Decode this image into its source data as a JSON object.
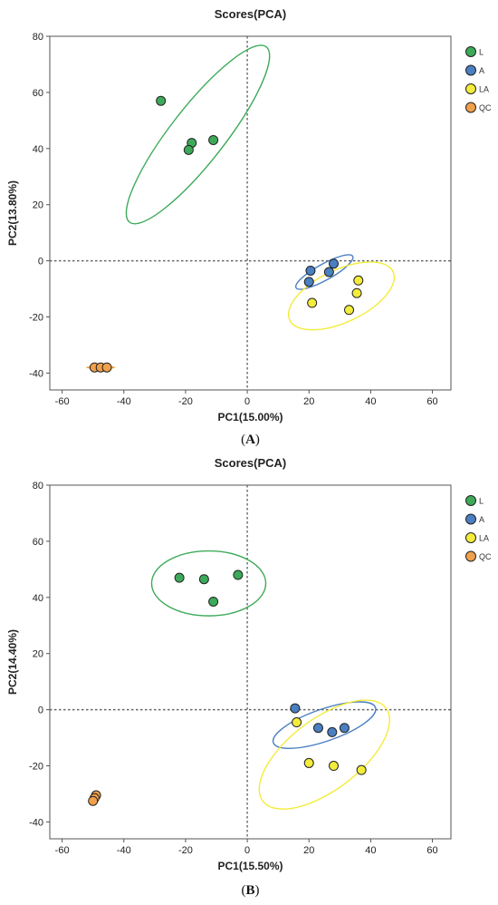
{
  "chart_data": [
    {
      "panel": "A",
      "type": "scatter",
      "title": "Scores(PCA)",
      "xlabel": "PC1(15.00%)",
      "ylabel": "PC2(13.80%)",
      "xlim": [
        -64,
        66
      ],
      "ylim": [
        -46,
        80
      ],
      "xticks": [
        -60,
        -40,
        -20,
        0,
        20,
        40,
        60
      ],
      "yticks": [
        -40,
        -20,
        0,
        20,
        40,
        60,
        80
      ],
      "legend_position": "right-top",
      "series": [
        {
          "name": "L",
          "color": "#3daa5a",
          "points": [
            [
              -28,
              57
            ],
            [
              -18,
              42
            ],
            [
              -19,
              39.5
            ],
            [
              -11,
              43
            ]
          ]
        },
        {
          "name": "A",
          "color": "#4a7fc1",
          "points": [
            [
              20.5,
              -3.5
            ],
            [
              20,
              -7.5
            ],
            [
              26.5,
              -4
            ],
            [
              28,
              -1
            ]
          ]
        },
        {
          "name": "LA",
          "color": "#f3ec3b",
          "points": [
            [
              21,
              -15
            ],
            [
              33,
              -17.5
            ],
            [
              36,
              -7
            ],
            [
              35.5,
              -11.5
            ]
          ]
        },
        {
          "name": "QC",
          "color": "#f0a04b",
          "points": [
            [
              -49.5,
              -38
            ],
            [
              -47.5,
              -38
            ],
            [
              -45.5,
              -38
            ]
          ]
        }
      ],
      "ellipses": [
        {
          "group": "L",
          "color": "#3daa5a",
          "cx": -16,
          "cy": 45,
          "rx": 36,
          "ry": 8.8,
          "angle": -52
        },
        {
          "group": "A",
          "color": "#4a7fc1",
          "cx": 25,
          "cy": -4,
          "rx": 10.5,
          "ry": 2.6,
          "angle": -29
        },
        {
          "group": "LA",
          "color": "#f3ec3b",
          "cx": 30.5,
          "cy": -12.5,
          "rx": 18.5,
          "ry": 8.5,
          "angle": -25
        },
        {
          "group": "QC",
          "color": "#f0a04b",
          "cx": -47.5,
          "cy": -38,
          "rx": 4.5,
          "ry": 0.25,
          "angle": 0
        }
      ],
      "panel_label": "A"
    },
    {
      "panel": "B",
      "type": "scatter",
      "title": "Scores(PCA)",
      "xlabel": "PC1(15.50%)",
      "ylabel": "PC2(14.40%)",
      "xlim": [
        -64,
        66
      ],
      "ylim": [
        -46,
        80
      ],
      "xticks": [
        -60,
        -40,
        -20,
        0,
        20,
        40,
        60
      ],
      "yticks": [
        -40,
        -20,
        0,
        20,
        40,
        60,
        80
      ],
      "legend_position": "right-top",
      "series": [
        {
          "name": "L",
          "color": "#3daa5a",
          "points": [
            [
              -22,
              47
            ],
            [
              -14,
              46.5
            ],
            [
              -3,
              48
            ],
            [
              -11,
              38.5
            ]
          ]
        },
        {
          "name": "A",
          "color": "#4a7fc1",
          "points": [
            [
              15.5,
              0.5
            ],
            [
              23,
              -6.5
            ],
            [
              27.5,
              -8
            ],
            [
              31.5,
              -6.5
            ]
          ]
        },
        {
          "name": "LA",
          "color": "#f3ec3b",
          "points": [
            [
              16,
              -4.5
            ],
            [
              20,
              -19
            ],
            [
              28,
              -20
            ],
            [
              37,
              -21.5
            ]
          ]
        },
        {
          "name": "QC",
          "color": "#f0a04b",
          "points": [
            [
              -49,
              -30.5
            ],
            [
              -49.5,
              -31.5
            ],
            [
              -50,
              -32.5
            ]
          ]
        }
      ],
      "ellipses": [
        {
          "group": "L",
          "color": "#3daa5a",
          "cx": -12.5,
          "cy": 45,
          "rx": 18.5,
          "ry": 10.5,
          "angle": 0
        },
        {
          "group": "A",
          "color": "#4a7fc1",
          "cx": 25,
          "cy": -5.5,
          "rx": 17.5,
          "ry": 5.2,
          "angle": -19
        },
        {
          "group": "LA",
          "color": "#f3ec3b",
          "cx": 25,
          "cy": -16,
          "rx": 25,
          "ry": 11.5,
          "angle": -37
        },
        {
          "group": "QC",
          "color": "#f0a04b",
          "cx": -49.5,
          "cy": -31.5,
          "rx": 1.2,
          "ry": 1.8,
          "angle": 0
        }
      ],
      "panel_label": "B"
    }
  ]
}
